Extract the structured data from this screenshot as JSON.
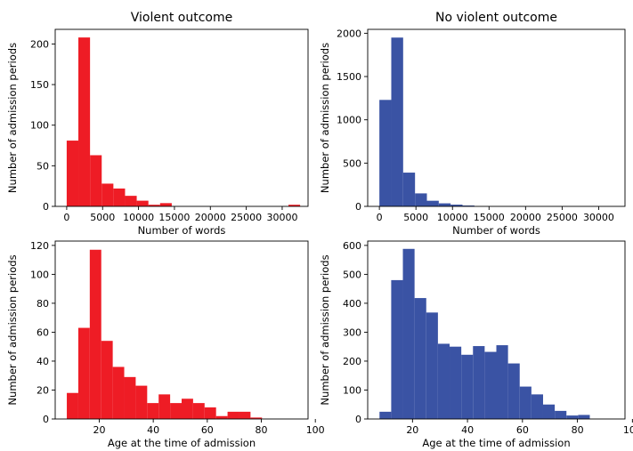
{
  "chart_data": [
    {
      "type": "bar",
      "title": "Violent outcome",
      "xlabel": "Number of words",
      "ylabel": "Number of admission periods",
      "color": "#ee1c25",
      "bin_width": 1625,
      "bins_start": [
        0,
        1625,
        3250,
        4875,
        6500,
        8125,
        9750,
        11375,
        13000,
        14625,
        16250,
        17875,
        19500,
        21125,
        22750,
        24375,
        26000,
        27625,
        29250,
        30875
      ],
      "values": [
        81,
        208,
        63,
        28,
        22,
        13,
        7,
        2,
        4,
        0,
        0,
        0,
        0,
        0,
        0,
        0,
        0,
        0,
        0,
        2
      ],
      "xlim": [
        -1600,
        33600
      ],
      "ylim": [
        0,
        218
      ],
      "xticks": [
        0,
        5000,
        10000,
        15000,
        20000,
        25000,
        30000
      ],
      "yticks": [
        0,
        50,
        100,
        150,
        200
      ],
      "grid": false
    },
    {
      "type": "bar",
      "title": "No violent outcome",
      "xlabel": "Number of words",
      "ylabel": "Number of admission periods",
      "color": "#3a53a4",
      "bin_width": 1625,
      "bins_start": [
        0,
        1625,
        3250,
        4875,
        6500,
        8125,
        9750,
        11375,
        13000,
        14625,
        16250,
        17875,
        19500,
        21125,
        22750,
        24375,
        26000,
        27625,
        29250,
        30875
      ],
      "values": [
        1230,
        1950,
        390,
        150,
        65,
        35,
        20,
        10,
        0,
        0,
        0,
        0,
        0,
        0,
        0,
        0,
        0,
        0,
        0,
        0
      ],
      "xlim": [
        -1600,
        33600
      ],
      "ylim": [
        0,
        2045
      ],
      "xticks": [
        0,
        5000,
        10000,
        15000,
        20000,
        25000,
        30000
      ],
      "yticks": [
        0,
        500,
        1000,
        1500,
        2000
      ],
      "grid": false
    },
    {
      "type": "bar",
      "title": "",
      "xlabel": "Age at the time of admission",
      "ylabel": "Number of admission periods",
      "color": "#ee1c25",
      "bin_width": 4.25,
      "bins_start": [
        8,
        12.25,
        16.5,
        20.75,
        25,
        29.25,
        33.5,
        37.75,
        42,
        46.25,
        50.5,
        54.75,
        59,
        63.25,
        67.5,
        71.75,
        76,
        80.25,
        84.5,
        88.75
      ],
      "values": [
        18,
        63,
        117,
        54,
        36,
        29,
        23,
        11,
        17,
        11,
        14,
        11,
        8,
        2,
        5,
        5,
        1,
        0,
        0,
        0
      ],
      "xlim": [
        3.7,
        97.3
      ],
      "ylim": [
        0,
        123
      ],
      "xticks": [
        20,
        40,
        60,
        80,
        100
      ],
      "yticks": [
        0,
        20,
        40,
        60,
        80,
        100,
        120
      ],
      "grid": false
    },
    {
      "type": "bar",
      "title": "",
      "xlabel": "Age at the time of admission",
      "ylabel": "Number of admission periods",
      "color": "#3a53a4",
      "bin_width": 4.25,
      "bins_start": [
        8,
        12.25,
        16.5,
        20.75,
        25,
        29.25,
        33.5,
        37.75,
        42,
        46.25,
        50.5,
        54.75,
        59,
        63.25,
        67.5,
        71.75,
        76,
        80.25,
        84.5,
        88.75
      ],
      "values": [
        25,
        480,
        588,
        418,
        368,
        260,
        250,
        222,
        252,
        232,
        255,
        192,
        112,
        85,
        50,
        28,
        12,
        14,
        0,
        0
      ],
      "xlim": [
        3.7,
        97.3
      ],
      "ylim": [
        0,
        615
      ],
      "xticks": [
        20,
        40,
        60,
        80,
        100
      ],
      "yticks": [
        0,
        100,
        200,
        300,
        400,
        500,
        600
      ],
      "grid": false
    }
  ]
}
